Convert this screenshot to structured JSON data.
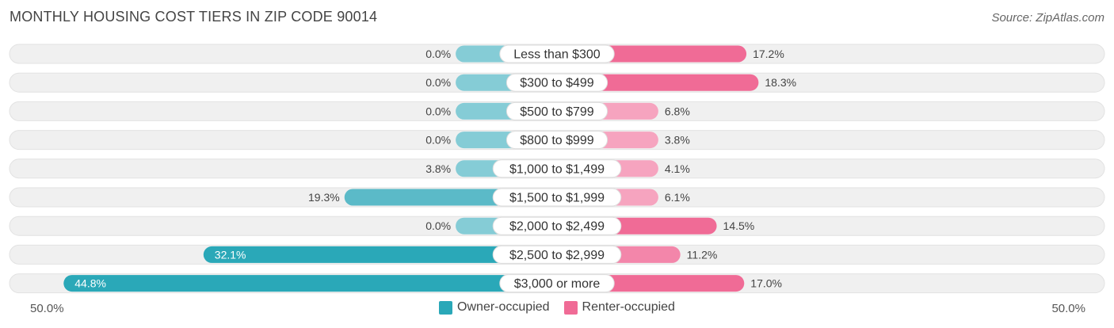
{
  "title": "MONTHLY HOUSING COST TIERS IN ZIP CODE 90014",
  "source": "Source: ZipAtlas.com",
  "colors": {
    "owner": "#5bbac8",
    "owner_light": "#85ccd6",
    "owner_dark": "#2aa8b8",
    "renter": "#f06b96",
    "renter_light": "#f6a4bf",
    "renter_mid": "#f386aa",
    "row_bg": "#f0f0f0"
  },
  "legend": {
    "owner_label": "Owner-occupied",
    "renter_label": "Renter-occupied"
  },
  "chart_data": {
    "type": "bar",
    "orientation": "horizontal-diverging",
    "title": "MONTHLY HOUSING COST TIERS IN ZIP CODE 90014",
    "categories": [
      "Less than $300",
      "$300 to $499",
      "$500 to $799",
      "$800 to $999",
      "$1,000 to $1,499",
      "$1,500 to $1,999",
      "$2,000 to $2,499",
      "$2,500 to $2,999",
      "$3,000 or more"
    ],
    "series": [
      {
        "name": "Owner-occupied",
        "values": [
          0.0,
          0.0,
          0.0,
          0.0,
          3.8,
          19.3,
          0.0,
          32.1,
          44.8
        ]
      },
      {
        "name": "Renter-occupied",
        "values": [
          17.2,
          18.3,
          6.8,
          3.8,
          4.1,
          6.1,
          14.5,
          11.2,
          17.0
        ]
      }
    ],
    "value_labels_owner": [
      "0.0%",
      "0.0%",
      "0.0%",
      "0.0%",
      "3.8%",
      "19.3%",
      "0.0%",
      "32.1%",
      "44.8%"
    ],
    "value_labels_renter": [
      "17.2%",
      "18.3%",
      "6.8%",
      "3.8%",
      "4.1%",
      "6.1%",
      "14.5%",
      "11.2%",
      "17.0%"
    ],
    "axis_min_label": "50.0%",
    "axis_max_label": "50.0%",
    "xlim": [
      -50,
      50
    ],
    "legend_position": "bottom-center"
  }
}
